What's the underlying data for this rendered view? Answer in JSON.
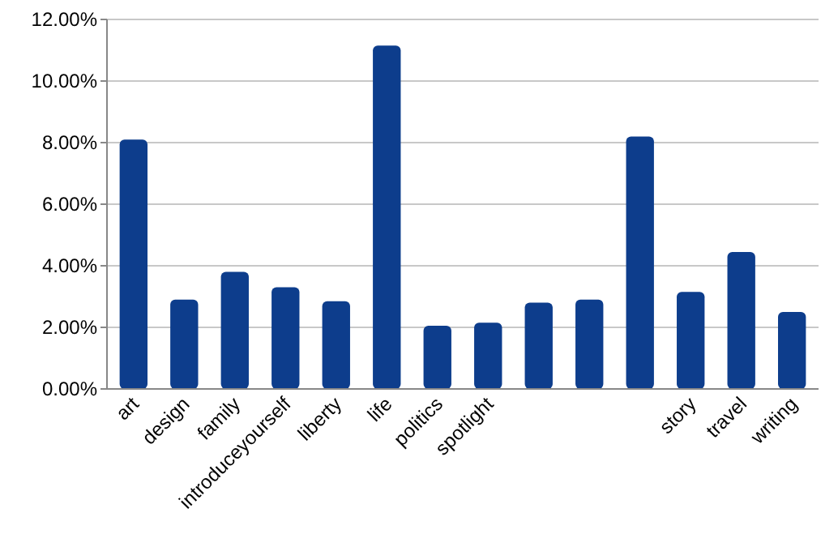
{
  "chart_data": {
    "type": "bar",
    "categories": [
      "art",
      "design",
      "family",
      "introduceyourself",
      "liberty",
      "life",
      "politics",
      "spotlight",
      null,
      null,
      null,
      "story",
      "travel",
      "writing"
    ],
    "values": [
      8.1,
      2.9,
      3.8,
      3.3,
      2.85,
      11.15,
      2.05,
      2.15,
      2.8,
      2.9,
      8.2,
      3.15,
      4.45,
      2.5
    ],
    "color": "#0d3d8c",
    "ylim": [
      0,
      12
    ],
    "yticks": [
      {
        "value": 0,
        "label": "0.00%"
      },
      {
        "value": 2,
        "label": "2.00%"
      },
      {
        "value": 4,
        "label": "4.00%"
      },
      {
        "value": 6,
        "label": "6.00%"
      },
      {
        "value": 8,
        "label": "8.00%"
      },
      {
        "value": 10,
        "label": "10.00%"
      },
      {
        "value": 12,
        "label": "12.00%"
      }
    ],
    "grid": "y"
  }
}
